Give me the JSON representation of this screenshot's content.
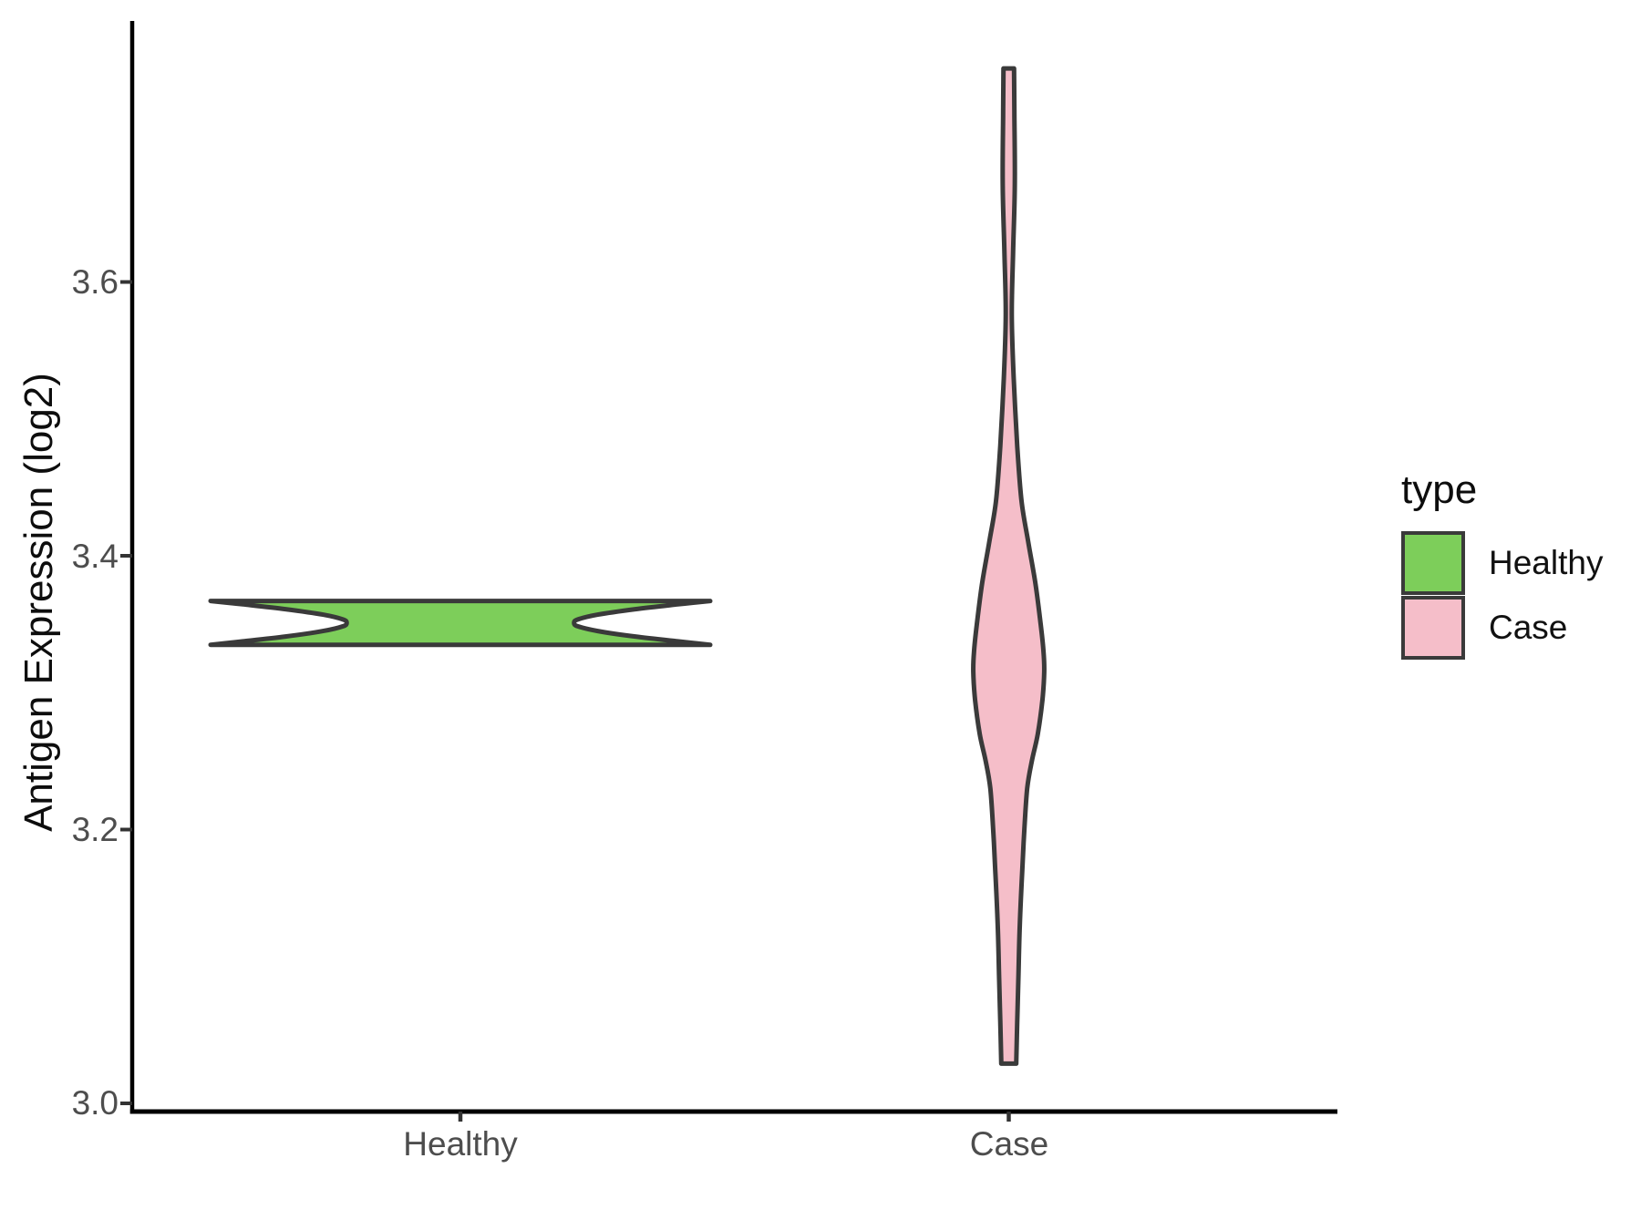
{
  "figure": {
    "background": "#ffffff"
  },
  "colors": {
    "axis_line": "#000000",
    "tick_mark": "#333333",
    "tick_label": "#4d4d4d",
    "axis_title": "#0d0d0d",
    "legend_text": "#111111",
    "violin_outline": "#3a3a3a",
    "healthy_fill": "#7dce5a",
    "case_fill": "#f5bec9"
  },
  "chart_data": {
    "type": "violin",
    "title": "",
    "xlabel": "",
    "ylabel": "Antigen Expression (log2)",
    "categories": [
      "Healthy",
      "Case"
    ],
    "yticks": [
      3.0,
      3.2,
      3.4,
      3.6
    ],
    "ytick_labels": [
      "3.0",
      "3.2",
      "3.4",
      "3.6"
    ],
    "ylim": [
      2.97,
      3.81
    ],
    "grid": "off",
    "legend": {
      "title": "type",
      "position": "right",
      "entries": [
        {
          "label": "Healthy",
          "fill": "#7dce5a"
        },
        {
          "label": "Case",
          "fill": "#f5bec9"
        }
      ]
    },
    "series": [
      {
        "name": "Healthy",
        "fill": "#7dce5a",
        "outline": "#3a3a3a",
        "value_range": [
          3.335,
          3.367
        ],
        "peak_values": [
          3.335,
          3.367
        ],
        "max_halfwidth_rel": 1.0,
        "profile": [
          {
            "v": 3.367,
            "w": 1.0
          },
          {
            "v": 3.3645,
            "w": 0.87
          },
          {
            "v": 3.361,
            "w": 0.7
          },
          {
            "v": 3.357,
            "w": 0.55
          },
          {
            "v": 3.3535,
            "w": 0.47
          },
          {
            "v": 3.351,
            "w": 0.455
          },
          {
            "v": 3.3485,
            "w": 0.47
          },
          {
            "v": 3.345,
            "w": 0.55
          },
          {
            "v": 3.341,
            "w": 0.7
          },
          {
            "v": 3.3375,
            "w": 0.87
          },
          {
            "v": 3.335,
            "w": 1.0
          }
        ]
      },
      {
        "name": "Case",
        "fill": "#f5bec9",
        "outline": "#3a3a3a",
        "value_range": [
          3.029,
          3.756
        ],
        "peak_values": [
          3.32
        ],
        "max_halfwidth_rel": 0.142,
        "profile": [
          {
            "v": 3.756,
            "w": 0.15
          },
          {
            "v": 3.72,
            "w": 0.16
          },
          {
            "v": 3.67,
            "w": 0.17
          },
          {
            "v": 3.62,
            "w": 0.12
          },
          {
            "v": 3.576,
            "w": 0.085
          },
          {
            "v": 3.53,
            "w": 0.14
          },
          {
            "v": 3.48,
            "w": 0.24
          },
          {
            "v": 3.44,
            "w": 0.36
          },
          {
            "v": 3.41,
            "w": 0.55
          },
          {
            "v": 3.38,
            "w": 0.75
          },
          {
            "v": 3.35,
            "w": 0.9
          },
          {
            "v": 3.33,
            "w": 0.98
          },
          {
            "v": 3.315,
            "w": 1.0
          },
          {
            "v": 3.295,
            "w": 0.95
          },
          {
            "v": 3.27,
            "w": 0.82
          },
          {
            "v": 3.25,
            "w": 0.65
          },
          {
            "v": 3.23,
            "w": 0.52
          },
          {
            "v": 3.2,
            "w": 0.44
          },
          {
            "v": 3.17,
            "w": 0.38
          },
          {
            "v": 3.13,
            "w": 0.31
          },
          {
            "v": 3.09,
            "w": 0.27
          },
          {
            "v": 3.06,
            "w": 0.24
          },
          {
            "v": 3.029,
            "w": 0.21
          }
        ]
      }
    ]
  }
}
